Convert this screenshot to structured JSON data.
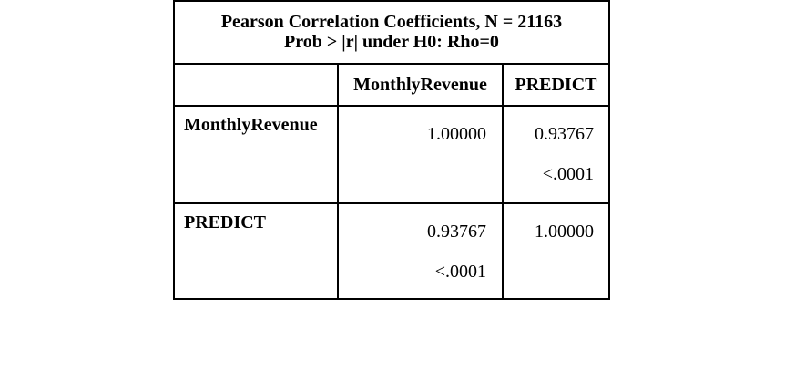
{
  "title": {
    "line1": "Pearson Correlation Coefficients, N = 21163",
    "line2": "Prob > |r| under H0: Rho=0"
  },
  "columns": [
    "MonthlyRevenue",
    "PREDICT"
  ],
  "rows": [
    {
      "label": "MonthlyRevenue",
      "cells": [
        {
          "coef": "1.00000",
          "p": ""
        },
        {
          "coef": "0.93767",
          "p": "<.0001"
        }
      ]
    },
    {
      "label": "PREDICT",
      "cells": [
        {
          "coef": "0.93767",
          "p": "<.0001"
        },
        {
          "coef": "1.00000",
          "p": ""
        }
      ]
    }
  ]
}
